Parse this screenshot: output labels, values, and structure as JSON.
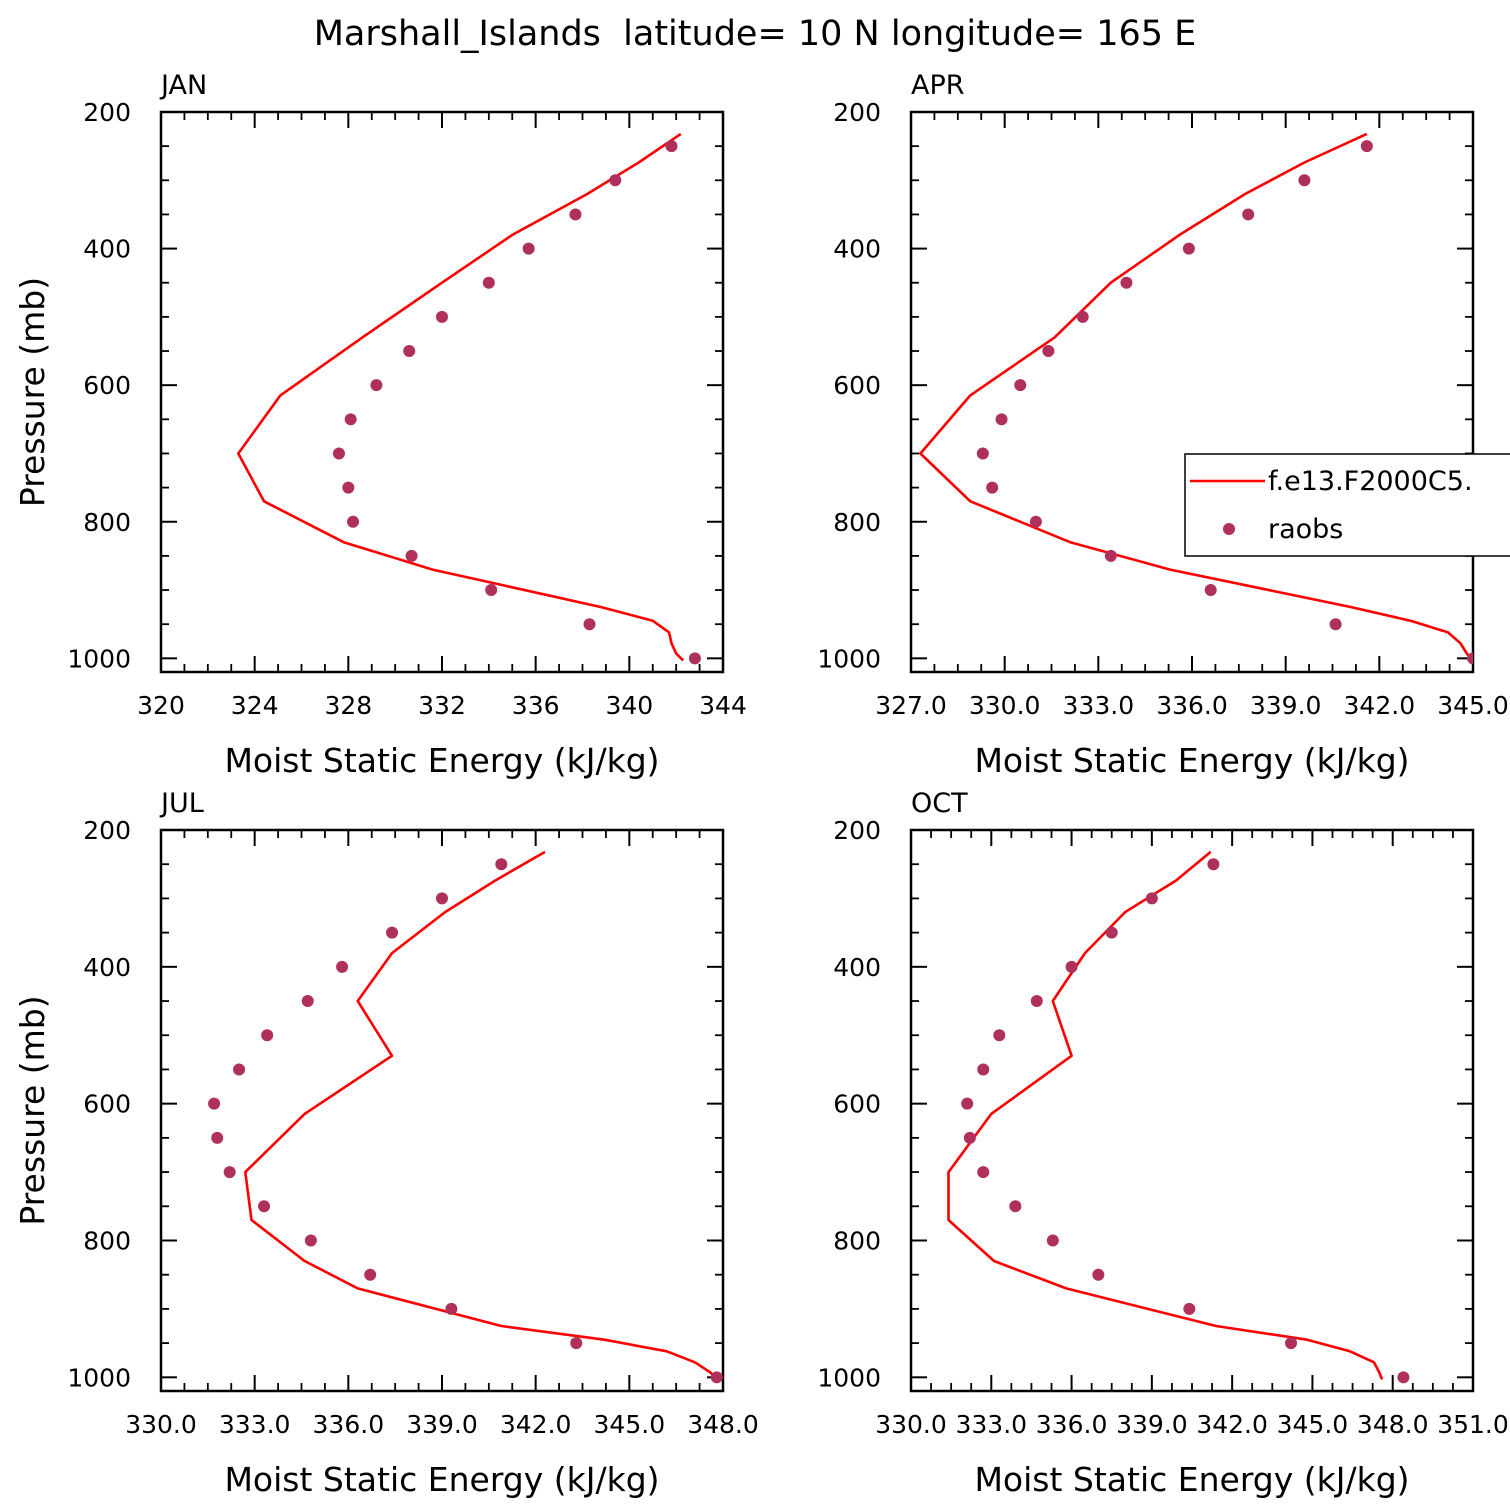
{
  "figure": {
    "title": "Marshall_Islands  latitude= 10 N longitude= 165 E"
  },
  "legend": {
    "model_label": "f.e13.F2000C5.",
    "obs_label": "raobs"
  },
  "colors": {
    "model": "#ff0000",
    "obs": "#b0305c",
    "axes": "#000000"
  },
  "chart_data": [
    {
      "type": "line",
      "panel_label": "JAN",
      "xlabel": "Moist Static Energy (kJ/kg)",
      "ylabel": "Pressure (mb)",
      "xlim": [
        320,
        344
      ],
      "ylim": [
        1020,
        200
      ],
      "y_reversed": true,
      "x_ticks": [
        "320",
        "324",
        "328",
        "332",
        "336",
        "340",
        "344"
      ],
      "y_ticks": [
        "200",
        "400",
        "600",
        "800",
        "1000"
      ],
      "grid": false,
      "legend": false,
      "series": [
        {
          "name": "f.e13.F2000C5.",
          "kind": "line",
          "p": [
            232,
            274,
            320,
            380,
            450,
            530,
            615,
            700,
            770,
            830,
            870,
            925,
            945,
            962,
            978,
            993,
            1003
          ],
          "x": [
            342.2,
            340.4,
            338.2,
            335.0,
            332.0,
            328.6,
            325.1,
            323.3,
            324.4,
            327.8,
            331.6,
            338.8,
            341.0,
            341.7,
            341.8,
            342.0,
            342.3
          ]
        },
        {
          "name": "raobs",
          "kind": "scatter",
          "p": [
            1000,
            950,
            900,
            850,
            800,
            750,
            700,
            650,
            600,
            550,
            500,
            450,
            400,
            350,
            300,
            250
          ],
          "x": [
            342.8,
            338.3,
            334.1,
            330.7,
            328.2,
            328.0,
            327.6,
            328.1,
            329.2,
            330.6,
            332.0,
            334.0,
            335.7,
            337.7,
            339.4,
            341.8
          ]
        }
      ]
    },
    {
      "type": "line",
      "panel_label": "APR",
      "xlabel": "Moist Static Energy (kJ/kg)",
      "ylabel": "",
      "xlim": [
        327,
        345
      ],
      "ylim": [
        1020,
        200
      ],
      "y_reversed": true,
      "x_ticks": [
        "327.0",
        "330.0",
        "333.0",
        "336.0",
        "339.0",
        "342.0",
        "345.0"
      ],
      "y_ticks": [
        "200",
        "400",
        "600",
        "800",
        "1000"
      ],
      "grid": false,
      "legend": true,
      "legend_position": "right",
      "series": [
        {
          "name": "f.e13.F2000C5.",
          "kind": "line",
          "p": [
            232,
            274,
            320,
            380,
            450,
            530,
            615,
            700,
            770,
            830,
            870,
            925,
            945,
            962,
            978,
            993,
            1003
          ],
          "x": [
            341.6,
            339.6,
            337.7,
            335.6,
            333.4,
            331.6,
            328.9,
            327.3,
            328.9,
            332.1,
            335.3,
            341.1,
            343.0,
            344.2,
            344.6,
            344.8,
            345.0
          ]
        },
        {
          "name": "raobs",
          "kind": "scatter",
          "p": [
            1000,
            950,
            900,
            850,
            800,
            750,
            700,
            650,
            600,
            550,
            500,
            450,
            400,
            350,
            300,
            250
          ],
          "x": [
            345.0,
            340.6,
            336.6,
            333.4,
            331.0,
            329.6,
            329.3,
            329.9,
            330.5,
            331.4,
            332.5,
            333.9,
            335.9,
            337.8,
            339.6,
            341.6
          ]
        }
      ]
    },
    {
      "type": "line",
      "panel_label": "JUL",
      "xlabel": "Moist Static Energy (kJ/kg)",
      "ylabel": "Pressure (mb)",
      "xlim": [
        330,
        348
      ],
      "ylim": [
        1020,
        200
      ],
      "y_reversed": true,
      "x_ticks": [
        "330.0",
        "333.0",
        "336.0",
        "339.0",
        "342.0",
        "345.0",
        "348.0"
      ],
      "y_ticks": [
        "200",
        "400",
        "600",
        "800",
        "1000"
      ],
      "grid": false,
      "legend": false,
      "series": [
        {
          "name": "f.e13.F2000C5.",
          "kind": "line",
          "p": [
            232,
            274,
            320,
            380,
            450,
            530,
            615,
            700,
            770,
            830,
            870,
            925,
            945,
            962,
            978,
            993,
            1003
          ],
          "x": [
            342.3,
            340.7,
            339.1,
            337.4,
            336.3,
            337.4,
            334.6,
            332.7,
            332.9,
            334.6,
            336.3,
            340.9,
            344.2,
            346.2,
            347.1,
            347.6,
            347.8
          ]
        },
        {
          "name": "raobs",
          "kind": "scatter",
          "p": [
            1000,
            950,
            900,
            850,
            800,
            750,
            700,
            650,
            600,
            550,
            500,
            450,
            400,
            350,
            300,
            250
          ],
          "x": [
            347.8,
            343.3,
            339.3,
            336.7,
            334.8,
            333.3,
            332.2,
            331.8,
            331.7,
            332.5,
            333.4,
            334.7,
            335.8,
            337.4,
            339.0,
            340.9
          ]
        }
      ]
    },
    {
      "type": "line",
      "panel_label": "OCT",
      "xlabel": "Moist Static Energy (kJ/kg)",
      "ylabel": "",
      "xlim": [
        330,
        351
      ],
      "ylim": [
        1020,
        200
      ],
      "y_reversed": true,
      "x_ticks": [
        "330.0",
        "333.0",
        "336.0",
        "339.0",
        "342.0",
        "345.0",
        "348.0",
        "351.0"
      ],
      "y_ticks": [
        "200",
        "400",
        "600",
        "800",
        "1000"
      ],
      "grid": false,
      "legend": false,
      "series": [
        {
          "name": "f.e13.F2000C5.",
          "kind": "line",
          "p": [
            232,
            274,
            320,
            380,
            450,
            530,
            615,
            700,
            770,
            830,
            870,
            925,
            945,
            962,
            978,
            993,
            1003
          ],
          "x": [
            341.2,
            339.9,
            338.0,
            336.5,
            335.3,
            336.0,
            333.0,
            331.4,
            331.4,
            333.1,
            335.8,
            341.4,
            344.8,
            346.4,
            347.3,
            347.5,
            347.6
          ]
        },
        {
          "name": "raobs",
          "kind": "scatter",
          "p": [
            1000,
            950,
            900,
            850,
            800,
            750,
            700,
            650,
            600,
            550,
            500,
            450,
            400,
            350,
            300,
            250
          ],
          "x": [
            348.4,
            344.2,
            340.4,
            337.0,
            335.3,
            333.9,
            332.7,
            332.2,
            332.1,
            332.7,
            333.3,
            334.7,
            336.0,
            337.5,
            339.0,
            341.3
          ]
        }
      ]
    }
  ]
}
